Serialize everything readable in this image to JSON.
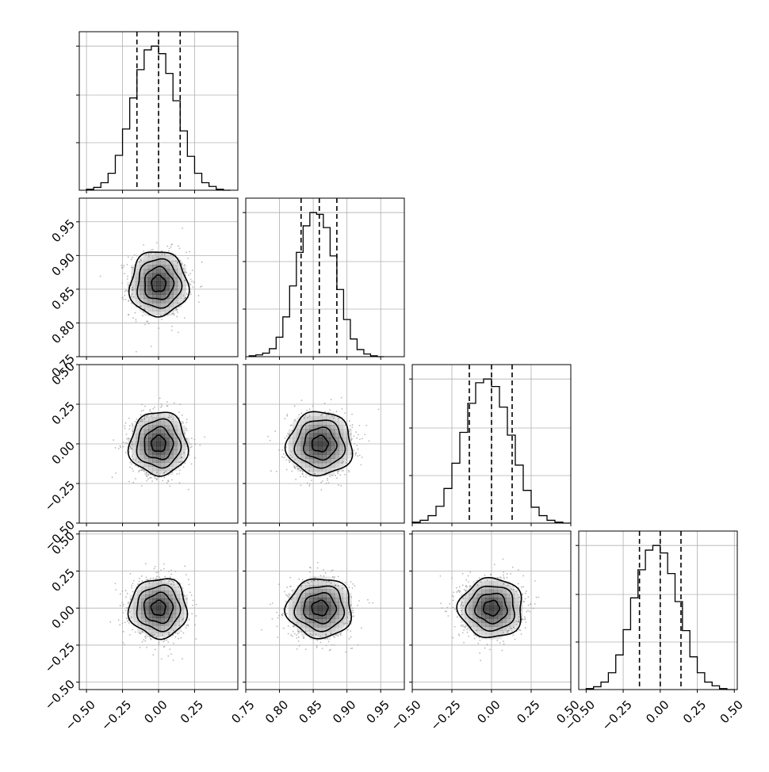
{
  "chart_data": {
    "type": "corner",
    "title": "",
    "parameters": [
      {
        "index": 0,
        "range": [
          -0.55,
          0.55
        ],
        "ticks": [
          -0.5,
          -0.25,
          0.0,
          0.25
        ],
        "tick_labels": [
          "−0.50",
          "−0.25",
          "0.00",
          "0.25"
        ],
        "mean": 0.0,
        "sd": 0.1,
        "quantiles": [
          -0.15,
          0.0,
          0.15
        ]
      },
      {
        "index": 1,
        "range": [
          0.75,
          0.985
        ],
        "ticks": [
          0.75,
          0.8,
          0.85,
          0.9,
          0.95
        ],
        "tick_labels": [
          "0.75",
          "0.80",
          "0.85",
          "0.90",
          "0.95"
        ],
        "mean": 0.859,
        "sd": 0.024,
        "quantiles": [
          0.832,
          0.859,
          0.885
        ]
      },
      {
        "index": 2,
        "range": [
          -0.5,
          0.5
        ],
        "ticks": [
          -0.5,
          -0.25,
          0.0,
          0.25,
          0.5
        ],
        "tick_labels": [
          "−0.50",
          "−0.25",
          "0.00",
          "0.25",
          "0.50"
        ],
        "mean": 0.0,
        "sd": 0.1,
        "quantiles": [
          -0.14,
          0.0,
          0.13
        ]
      },
      {
        "index": 3,
        "range": [
          -0.55,
          0.52
        ],
        "ticks": [
          -0.5,
          -0.25,
          0.0,
          0.25,
          0.5
        ],
        "tick_labels": [
          "−0.50",
          "−0.25",
          "0.00",
          "0.25",
          "0.50"
        ],
        "mean": 0.0,
        "sd": 0.1,
        "quantiles": [
          -0.14,
          0.0,
          0.14
        ]
      }
    ],
    "histograms": [
      {
        "param": 0,
        "bin_edges": [
          -0.5,
          -0.45,
          -0.4,
          -0.35,
          -0.3,
          -0.25,
          -0.2,
          -0.15,
          -0.1,
          -0.05,
          0.0,
          0.05,
          0.1,
          0.15,
          0.2,
          0.25,
          0.3,
          0.35,
          0.4,
          0.45,
          0.5
        ],
        "counts": [
          1,
          3,
          8,
          18,
          37,
          65,
          98,
          128,
          149,
          153,
          145,
          124,
          95,
          63,
          36,
          18,
          8,
          4,
          1,
          0
        ]
      },
      {
        "param": 1,
        "bin_edges": [
          0.755,
          0.765,
          0.775,
          0.785,
          0.795,
          0.805,
          0.815,
          0.825,
          0.835,
          0.845,
          0.855,
          0.865,
          0.875,
          0.885,
          0.895,
          0.905,
          0.915,
          0.925,
          0.935,
          0.945,
          0.955
        ],
        "counts": [
          1,
          2,
          4,
          9,
          22,
          45,
          80,
          118,
          148,
          163,
          161,
          146,
          114,
          76,
          42,
          20,
          8,
          3,
          1,
          0
        ]
      },
      {
        "param": 2,
        "bin_edges": [
          -0.5,
          -0.45,
          -0.4,
          -0.35,
          -0.3,
          -0.25,
          -0.2,
          -0.15,
          -0.1,
          -0.05,
          0.0,
          0.05,
          0.1,
          0.15,
          0.2,
          0.25,
          0.3,
          0.35,
          0.4,
          0.45,
          0.5
        ],
        "counts": [
          1,
          3,
          8,
          18,
          37,
          64,
          97,
          128,
          150,
          154,
          146,
          124,
          94,
          62,
          35,
          17,
          8,
          3,
          1,
          0
        ]
      },
      {
        "param": 3,
        "bin_edges": [
          -0.5,
          -0.45,
          -0.4,
          -0.35,
          -0.3,
          -0.25,
          -0.2,
          -0.15,
          -0.1,
          -0.05,
          0.0,
          0.05,
          0.1,
          0.15,
          0.2,
          0.25,
          0.3,
          0.35,
          0.4,
          0.45,
          0.5
        ],
        "counts": [
          1,
          3,
          8,
          18,
          37,
          64,
          98,
          128,
          149,
          154,
          146,
          124,
          94,
          63,
          35,
          18,
          8,
          4,
          1,
          0
        ]
      }
    ],
    "pairs": [
      {
        "x": 0,
        "y": 1,
        "center": [
          0.0,
          0.858
        ],
        "sd": [
          0.1,
          0.024
        ],
        "levels_sigma": [
          0.5,
          1.0,
          1.5,
          2.0
        ]
      },
      {
        "x": 0,
        "y": 2,
        "center": [
          0.0,
          0.0
        ],
        "sd": [
          0.1,
          0.1
        ],
        "levels_sigma": [
          0.5,
          1.0,
          1.5,
          2.0
        ]
      },
      {
        "x": 1,
        "y": 2,
        "center": [
          0.86,
          0.0
        ],
        "sd": [
          0.024,
          0.1
        ],
        "levels_sigma": [
          0.5,
          1.0,
          1.5,
          2.0
        ]
      },
      {
        "x": 0,
        "y": 3,
        "center": [
          0.0,
          0.0
        ],
        "sd": [
          0.1,
          0.1
        ],
        "levels_sigma": [
          0.5,
          1.0,
          1.5,
          2.0
        ]
      },
      {
        "x": 1,
        "y": 3,
        "center": [
          0.86,
          0.0
        ],
        "sd": [
          0.024,
          0.1
        ],
        "levels_sigma": [
          0.5,
          1.0,
          1.5,
          2.0
        ]
      },
      {
        "x": 2,
        "y": 3,
        "center": [
          0.0,
          0.0
        ],
        "sd": [
          0.1,
          0.1
        ],
        "levels_sigma": [
          0.5,
          1.0,
          1.5,
          2.0
        ]
      }
    ],
    "contour_color": "#000000",
    "point_color": "#9a9a9a",
    "density_color": "#000000",
    "grid": true,
    "legend": "none"
  }
}
